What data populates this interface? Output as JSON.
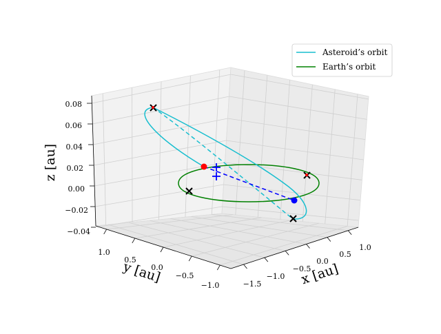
{
  "chart_data": {
    "type": "line3d",
    "title": "",
    "xlabel": "x [au]",
    "ylabel": "y [au]",
    "zlabel": "z [au]",
    "x_ticks": [
      "−1.5",
      "−1.0",
      "−0.5",
      "0.0",
      "0.5",
      "1.0"
    ],
    "y_ticks": [
      "1.0",
      "0.5",
      "0.0",
      "−0.5",
      "−1.0"
    ],
    "z_ticks": [
      "0.08",
      "0.06",
      "0.04",
      "0.02",
      "0.00",
      "−0.02",
      "−0.04"
    ],
    "xlim": [
      -1.7,
      1.3
    ],
    "ylim": [
      -1.2,
      1.2
    ],
    "zlim": [
      -0.04,
      0.085
    ],
    "grid": true,
    "legend_position": "top-right",
    "series": [
      {
        "name": "Asteroid’s orbit",
        "color": "#17becf",
        "style": "solid ellipse, far half dashed",
        "perihelion_au": 0.7,
        "aphelion_au": 1.4,
        "inclination_deg": 3.2
      },
      {
        "name": "Earth’s orbit",
        "color": "#008000",
        "style": "solid circle",
        "radius_au": 1.0,
        "inclination_deg": 0
      }
    ],
    "markers": [
      {
        "name": "earth-position",
        "color": "#0000ff",
        "symbol": "circle"
      },
      {
        "name": "asteroid-position",
        "color": "#ff0000",
        "symbol": "circle"
      },
      {
        "name": "projection-point-1",
        "color": "#0000ff",
        "symbol": "plus"
      },
      {
        "name": "projection-point-2",
        "color": "#0000ff",
        "symbol": "plus"
      },
      {
        "name": "orbit-node-1",
        "color": "#000000",
        "symbol": "x"
      },
      {
        "name": "orbit-node-2",
        "color": "#000000",
        "symbol": "x"
      },
      {
        "name": "orbit-node-3",
        "color": "#000000",
        "symbol": "x"
      },
      {
        "name": "orbit-node-4",
        "color": "#000000",
        "symbol": "x"
      }
    ],
    "connector": {
      "name": "earth-asteroid-line",
      "color": "#0000ff",
      "style": "dashed"
    }
  }
}
